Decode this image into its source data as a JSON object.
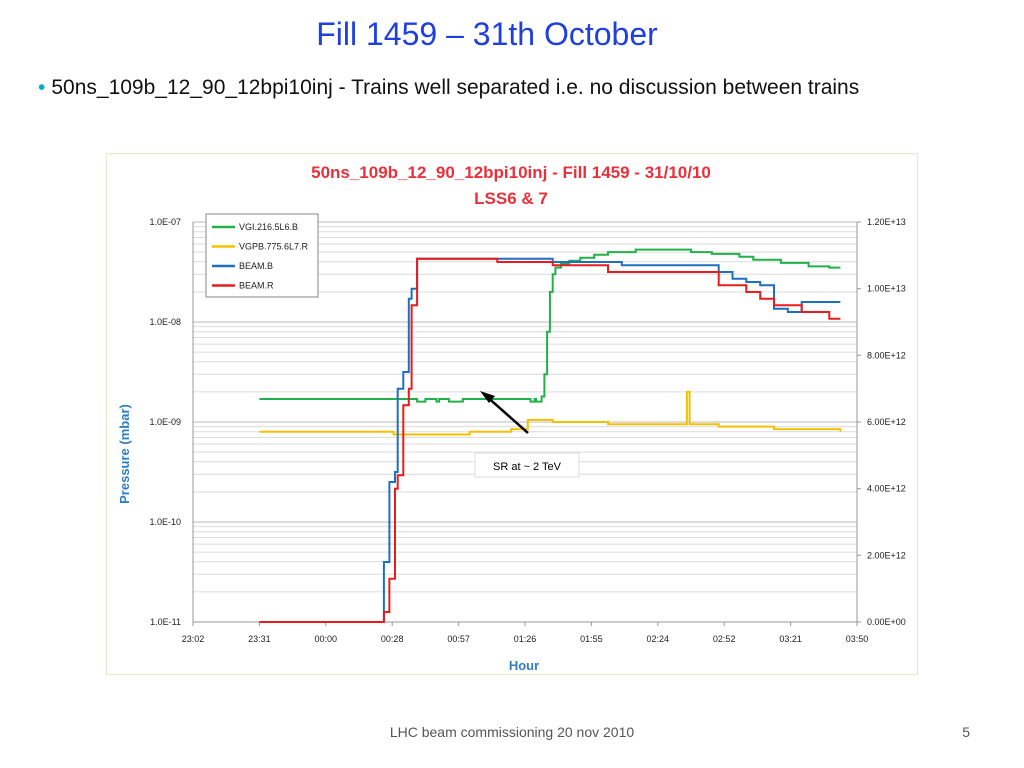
{
  "slide": {
    "title": "Fill 1459 – 31th October",
    "bullet": "50ns_109b_12_90_12bpi10inj  - Trains well separated i.e. no discussion between trains",
    "footer": "LHC beam commissioning 20 nov 2010",
    "page_number": "5"
  },
  "colors": {
    "title": "#1f3fe0",
    "chart_title": "#e8313a",
    "axis_label": "#2f7fc0",
    "green": "#22b04b",
    "yellow": "#f5c000",
    "blue": "#1f6fc0",
    "red": "#e81c1c"
  },
  "chart_data": {
    "type": "line",
    "title": "50ns_109b_12_90_12bpi10inj  - Fill 1459 - 31/10/10",
    "subtitle": "LSS6 & 7",
    "xlabel": "Hour",
    "ylabel": "Pressure (mbar)",
    "x_unit": "hours since 23:02",
    "x_ticks": [
      "23:02",
      "23:31",
      "00:00",
      "00:28",
      "00:57",
      "01:26",
      "01:55",
      "02:24",
      "02:52",
      "03:21",
      "03:50"
    ],
    "xlim": [
      0,
      4.8
    ],
    "y_left": {
      "scale": "log",
      "ylim": [
        1e-11,
        1e-07
      ],
      "ticks": [
        "1.0E-11",
        "1.0E-10",
        "1.0E-09",
        "1.0E-08",
        "1.0E-07"
      ]
    },
    "y_right": {
      "scale": "linear",
      "ylim": [
        0,
        12000000000000.0
      ],
      "ticks": [
        "0.00E+00",
        "2.00E+12",
        "4.00E+12",
        "6.00E+12",
        "8.00E+12",
        "1.00E+13",
        "1.20E+13"
      ]
    },
    "legend_position": "top-left",
    "grid": true,
    "annotation": {
      "text": "SR at ~ 2 TeV",
      "points_to": [
        3.0,
        1.3e-09
      ]
    },
    "series": [
      {
        "name": "VGI.216.5L6.B",
        "axis": "left",
        "color": "#22b04b",
        "x": [
          0.48,
          0.8,
          1.62,
          1.65,
          1.68,
          1.72,
          1.76,
          1.78,
          1.84,
          1.85,
          1.92,
          1.95,
          2.42,
          2.44,
          2.45,
          2.46,
          2.47,
          2.48,
          2.49,
          2.5,
          2.52,
          2.54,
          2.56,
          2.58,
          2.6,
          2.62,
          2.66,
          2.72,
          2.8,
          2.9,
          3.0,
          3.2,
          3.4,
          3.6,
          3.75,
          3.95,
          4.05,
          4.25,
          4.45,
          4.6,
          4.68
        ],
        "y": [
          1.7e-09,
          1.7e-09,
          1.6e-09,
          1.6e-09,
          1.7e-09,
          1.7e-09,
          1.6e-09,
          1.7e-09,
          1.7e-09,
          1.6e-09,
          1.6e-09,
          1.7e-09,
          1.7e-09,
          1.6e-09,
          1.6e-09,
          1.6e-09,
          1.7e-09,
          1.6e-09,
          1.6e-09,
          1.6e-09,
          1.8e-09,
          3e-09,
          8e-09,
          2e-08,
          3e-08,
          3.5e-08,
          3.8e-08,
          4.1e-08,
          4.4e-08,
          4.7e-08,
          5e-08,
          5.3e-08,
          5.3e-08,
          5e-08,
          4.8e-08,
          4.5e-08,
          4.2e-08,
          3.9e-08,
          3.6e-08,
          3.5e-08,
          3.5e-08
        ]
      },
      {
        "name": "VGPB.775.6L7.R",
        "axis": "left",
        "color": "#f5c000",
        "x": [
          0.48,
          1.0,
          1.45,
          1.62,
          2.0,
          2.3,
          2.42,
          2.6,
          3.0,
          3.4,
          3.55,
          3.57,
          3.59,
          3.61,
          3.8,
          4.2,
          4.68
        ],
        "y": [
          8e-10,
          8e-10,
          7.5e-10,
          7.5e-10,
          8e-10,
          8.5e-10,
          1.05e-09,
          1e-09,
          9.5e-10,
          9.5e-10,
          9.5e-10,
          2e-09,
          9.5e-10,
          9.5e-10,
          9e-10,
          8.5e-10,
          8e-10
        ]
      },
      {
        "name": "BEAM.B",
        "axis": "right",
        "color": "#1f6fc0",
        "x": [
          0.48,
          1.32,
          1.36,
          1.38,
          1.42,
          1.46,
          1.48,
          1.52,
          1.56,
          1.58,
          1.62,
          1.66,
          1.72,
          1.8,
          2.6,
          2.7,
          3.0,
          3.1,
          3.8,
          3.9,
          4.0,
          4.1,
          4.2,
          4.3,
          4.4,
          4.68
        ],
        "y": [
          0,
          0,
          0,
          1800000000000.0,
          4200000000000.0,
          4500000000000.0,
          7000000000000.0,
          7500000000000.0,
          9700000000000.0,
          10000000000000.0,
          10900000000000.0,
          10900000000000.0,
          10900000000000.0,
          10900000000000.0,
          10800000000000.0,
          10800000000000.0,
          10800000000000.0,
          10700000000000.0,
          10500000000000.0,
          10300000000000.0,
          10200000000000.0,
          10100000000000.0,
          9400000000000.0,
          9300000000000.0,
          9600000000000.0,
          9600000000000.0
        ]
      },
      {
        "name": "BEAM.R",
        "axis": "right",
        "color": "#e81c1c",
        "x": [
          0.48,
          1.36,
          1.38,
          1.42,
          1.46,
          1.48,
          1.52,
          1.56,
          1.58,
          1.62,
          1.66,
          1.7,
          1.8,
          2.2,
          2.6,
          3.0,
          3.8,
          4.0,
          4.1,
          4.2,
          4.4,
          4.6,
          4.68
        ],
        "y": [
          0,
          0,
          300000000000.0,
          1300000000000.0,
          4000000000000.0,
          4400000000000.0,
          6500000000000.0,
          7000000000000.0,
          9500000000000.0,
          10900000000000.0,
          10900000000000.0,
          10900000000000.0,
          10900000000000.0,
          10800000000000.0,
          10700000000000.0,
          10500000000000.0,
          10100000000000.0,
          9900000000000.0,
          9700000000000.0,
          9500000000000.0,
          9300000000000.0,
          9100000000000.0,
          9100000000000.0
        ]
      }
    ]
  }
}
